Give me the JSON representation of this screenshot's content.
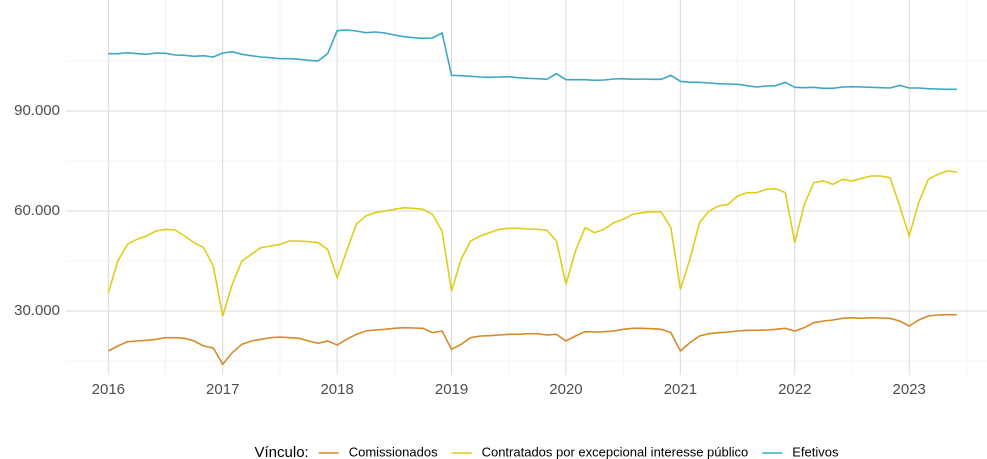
{
  "chart_data": {
    "type": "line",
    "x": [
      2016,
      2016.083,
      2016.167,
      2016.25,
      2016.333,
      2016.417,
      2016.5,
      2016.583,
      2016.667,
      2016.75,
      2016.833,
      2016.917,
      2017,
      2017.083,
      2017.167,
      2017.25,
      2017.333,
      2017.417,
      2017.5,
      2017.583,
      2017.667,
      2017.75,
      2017.833,
      2017.917,
      2018,
      2018.083,
      2018.167,
      2018.25,
      2018.333,
      2018.417,
      2018.5,
      2018.583,
      2018.667,
      2018.75,
      2018.833,
      2018.917,
      2019,
      2019.083,
      2019.167,
      2019.25,
      2019.333,
      2019.417,
      2019.5,
      2019.583,
      2019.667,
      2019.75,
      2019.833,
      2019.917,
      2020,
      2020.083,
      2020.167,
      2020.25,
      2020.333,
      2020.417,
      2020.5,
      2020.583,
      2020.667,
      2020.75,
      2020.833,
      2020.917,
      2021,
      2021.083,
      2021.167,
      2021.25,
      2021.333,
      2021.417,
      2021.5,
      2021.583,
      2021.667,
      2021.75,
      2021.833,
      2021.917,
      2022,
      2022.083,
      2022.167,
      2022.25,
      2022.333,
      2022.417,
      2022.5,
      2022.583,
      2022.667,
      2022.75,
      2022.833,
      2022.917,
      2023,
      2023.083,
      2023.167,
      2023.25,
      2023.333,
      2023.417
    ],
    "series": [
      {
        "name": "Comissionados",
        "color": "#d68a2a",
        "values": [
          18000,
          19500,
          20800,
          21000,
          21200,
          21500,
          22000,
          22000,
          21800,
          21000,
          19500,
          18900,
          14000,
          17500,
          20000,
          21000,
          21500,
          22000,
          22200,
          22000,
          21800,
          21000,
          20300,
          21000,
          19800,
          21500,
          23000,
          24000,
          24300,
          24500,
          24800,
          25000,
          24900,
          24800,
          23500,
          24000,
          18500,
          20000,
          22000,
          22500,
          22600,
          22800,
          23000,
          23000,
          23200,
          23200,
          22800,
          23000,
          21000,
          22500,
          23800,
          23700,
          23800,
          24000,
          24500,
          24800,
          24800,
          24700,
          24500,
          23500,
          18000,
          20500,
          22500,
          23200,
          23500,
          23700,
          24000,
          24200,
          24200,
          24300,
          24500,
          24800,
          24000,
          25000,
          26500,
          27000,
          27300,
          27800,
          28000,
          27800,
          28000,
          27900,
          27800,
          27000,
          25500,
          27300,
          28500,
          28800,
          28900,
          28900
        ]
      },
      {
        "name": "Contratados por excepcional interesse público",
        "color": "#dccf1a",
        "values": [
          35500,
          45000,
          50000,
          51500,
          52500,
          54000,
          54500,
          54300,
          52500,
          50500,
          49000,
          43500,
          28500,
          38000,
          45000,
          47000,
          49000,
          49500,
          50000,
          51000,
          51000,
          50800,
          50500,
          48500,
          40000,
          48000,
          56000,
          58500,
          59500,
          60000,
          60500,
          61000,
          60800,
          60500,
          59000,
          54000,
          36000,
          45500,
          51000,
          52500,
          53500,
          54500,
          54800,
          54800,
          54600,
          54500,
          54200,
          51000,
          38000,
          48000,
          55000,
          53500,
          54500,
          56500,
          57500,
          59000,
          59500,
          59800,
          59700,
          55000,
          36500,
          45500,
          56500,
          60000,
          61500,
          62000,
          64500,
          65500,
          65500,
          66500,
          66700,
          65500,
          50500,
          62000,
          68500,
          69000,
          68000,
          69500,
          69000,
          69800,
          70500,
          70500,
          70000,
          61500,
          52500,
          62500,
          69500,
          71000,
          72000,
          71700
        ]
      },
      {
        "name": "Efetivos",
        "color": "#3fa7c4",
        "values": [
          107200,
          107200,
          107500,
          107200,
          107000,
          107400,
          107300,
          106800,
          106700,
          106400,
          106600,
          106200,
          107400,
          107800,
          107000,
          106600,
          106200,
          106000,
          105700,
          105700,
          105500,
          105200,
          105000,
          107200,
          114100,
          114300,
          114000,
          113500,
          113700,
          113400,
          112800,
          112300,
          112000,
          111800,
          111900,
          113400,
          100700,
          100600,
          100400,
          100200,
          100100,
          100200,
          100300,
          100000,
          99800,
          99700,
          99500,
          101200,
          99400,
          99400,
          99400,
          99200,
          99300,
          99600,
          99700,
          99500,
          99600,
          99500,
          99500,
          100700,
          98900,
          98600,
          98600,
          98400,
          98200,
          98100,
          98000,
          97600,
          97200,
          97500,
          97600,
          98600,
          97100,
          97000,
          97100,
          96800,
          96800,
          97200,
          97300,
          97200,
          97100,
          97000,
          96900,
          97700,
          96900,
          96900,
          96700,
          96600,
          96500,
          96500
        ]
      }
    ],
    "legend_title": "Vínculo:",
    "legend_position": "bottom",
    "grid": true,
    "xlim": [
      2015.63,
      2023.68
    ],
    "xticks": [
      2016,
      2017,
      2018,
      2019,
      2020,
      2021,
      2022,
      2023
    ],
    "ylim": [
      10800,
      123300
    ],
    "yticks": [
      {
        "value": 30000,
        "label": "30.000"
      },
      {
        "value": 60000,
        "label": "60.000"
      },
      {
        "value": 90000,
        "label": "90.000"
      }
    ]
  }
}
